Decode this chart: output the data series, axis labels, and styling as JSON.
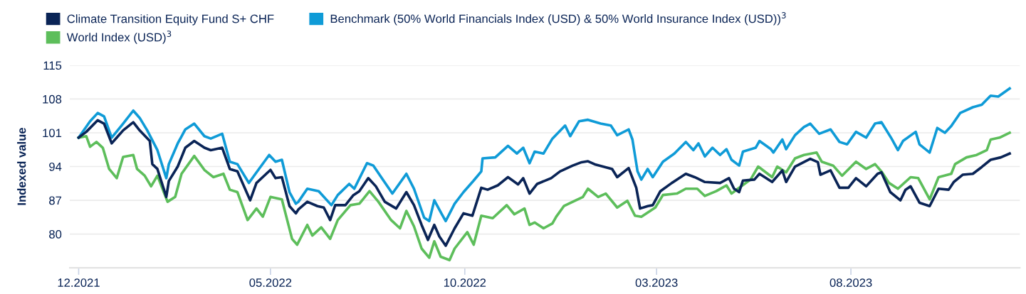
{
  "chart_data": {
    "type": "line",
    "ylabel": "Indexed value",
    "legend": "top left",
    "grid": "y",
    "marker": "none",
    "line_style": "solid",
    "xlim": [
      "2021-11-24",
      "2023-12-12"
    ],
    "xticks": [
      {
        "value": "2021-12-01",
        "label": "12.2021"
      },
      {
        "value": "2022-05-01",
        "label": "05.2022"
      },
      {
        "value": "2022-10-01",
        "label": "10.2022"
      },
      {
        "value": "2023-03-01",
        "label": "03.2023"
      },
      {
        "value": "2023-08-01",
        "label": "08.2023"
      }
    ],
    "ylim": [
      73,
      115
    ],
    "yticks": [
      80,
      87,
      94,
      101,
      108,
      115
    ],
    "series": [
      {
        "name": "Climate Transition Equity Fund S+ CHF",
        "color": "#0a2456",
        "x": [
          "2021-12-01",
          "2021-12-07",
          "2021-12-16",
          "2021-12-21",
          "2021-12-27",
          "2021-12-31",
          "2022-01-05",
          "2022-01-13",
          "2022-01-18",
          "2022-01-26",
          "2022-01-28",
          "2022-02-01",
          "2022-02-08",
          "2022-02-10",
          "2022-02-17",
          "2022-02-23",
          "2022-03-02",
          "2022-03-10",
          "2022-03-15",
          "2022-03-24",
          "2022-03-30",
          "2022-04-05",
          "2022-04-15",
          "2022-04-20",
          "2022-05-01",
          "2022-05-05",
          "2022-05-10",
          "2022-05-16",
          "2022-05-21",
          "2022-05-23",
          "2022-05-30",
          "2022-06-07",
          "2022-06-12",
          "2022-06-17",
          "2022-06-21",
          "2022-06-29",
          "2022-07-05",
          "2022-07-10",
          "2022-07-17",
          "2022-07-23",
          "2022-07-30",
          "2022-08-08",
          "2022-08-16",
          "2022-08-22",
          "2022-08-28",
          "2022-09-02",
          "2022-09-07",
          "2022-09-11",
          "2022-09-16",
          "2022-09-23",
          "2022-09-30",
          "2022-10-07",
          "2022-10-14",
          "2022-10-19",
          "2022-10-27",
          "2022-11-04",
          "2022-11-12",
          "2022-11-16",
          "2022-11-21",
          "2022-11-27",
          "2022-12-08",
          "2022-12-15",
          "2022-12-25",
          "2023-01-01",
          "2023-01-06",
          "2023-01-12",
          "2023-01-25",
          "2023-01-29",
          "2023-02-07",
          "2023-02-13",
          "2023-02-16",
          "2023-02-22",
          "2023-02-26",
          "2023-03-04",
          "2023-03-13",
          "2023-03-24",
          "2023-03-31",
          "2023-04-08",
          "2023-04-20",
          "2023-04-27",
          "2023-05-01",
          "2023-05-05",
          "2023-05-08",
          "2023-05-17",
          "2023-05-21",
          "2023-05-31",
          "2023-06-08",
          "2023-06-11",
          "2023-06-18",
          "2023-06-30",
          "2023-07-06",
          "2023-07-08",
          "2023-07-16",
          "2023-07-23",
          "2023-07-30",
          "2023-08-05",
          "2023-08-13",
          "2023-08-22",
          "2023-08-25",
          "2023-09-01",
          "2023-09-09",
          "2023-09-13",
          "2023-09-17",
          "2023-09-24",
          "2023-10-02",
          "2023-10-09",
          "2023-10-17",
          "2023-10-21",
          "2023-10-28",
          "2023-11-05",
          "2023-11-12",
          "2023-11-19",
          "2023-11-27",
          "2023-12-04"
        ],
        "values": [
          100,
          101.2,
          103.6,
          102.9,
          98.8,
          100,
          101.5,
          103.2,
          101.5,
          99.3,
          94.5,
          93.5,
          87.7,
          91,
          94,
          97.9,
          99.3,
          97.9,
          97.4,
          97.9,
          93.5,
          93,
          87,
          90.6,
          93.3,
          91.6,
          91.8,
          85.8,
          84.3,
          85.1,
          86.7,
          85.8,
          85.5,
          82.9,
          86,
          86,
          88,
          88.9,
          91.6,
          89.9,
          86.7,
          85.3,
          88.7,
          86,
          81.9,
          78.8,
          81.9,
          79.5,
          77.6,
          81.2,
          84.3,
          83.8,
          89.6,
          89.2,
          90.1,
          91.8,
          90.3,
          91.6,
          88.4,
          90.4,
          91.6,
          93,
          94.2,
          94.9,
          95.1,
          94.4,
          93.5,
          91.8,
          93.7,
          89.6,
          85.3,
          85.8,
          86,
          88.9,
          90.6,
          92.5,
          91.8,
          90.8,
          90.6,
          91.6,
          89.4,
          88.7,
          91.1,
          91.3,
          92.5,
          90.8,
          93.2,
          90.8,
          94,
          95.6,
          94.9,
          92.3,
          93.2,
          89.6,
          89.6,
          91.6,
          89.9,
          92.5,
          92.8,
          88.7,
          87,
          89.2,
          89.9,
          86.5,
          85.8,
          89.4,
          89.2,
          90.8,
          92.3,
          92.5,
          93.9,
          95.4,
          95.9,
          96.7
        ]
      },
      {
        "name": "Benchmark (50% World Financials Index (USD) & 50% World Insurance Index (USD))$^{3}$",
        "color": "#0f9bd7",
        "x": [
          "2021-12-01",
          "2021-12-10",
          "2021-12-16",
          "2021-12-21",
          "2021-12-27",
          "2022-01-05",
          "2022-01-13",
          "2022-01-18",
          "2022-01-24",
          "2022-02-01",
          "2022-02-08",
          "2022-02-10",
          "2022-02-17",
          "2022-02-23",
          "2022-03-02",
          "2022-03-10",
          "2022-03-15",
          "2022-03-24",
          "2022-03-30",
          "2022-04-05",
          "2022-04-14",
          "2022-04-20",
          "2022-04-30",
          "2022-05-05",
          "2022-05-10",
          "2022-05-16",
          "2022-05-21",
          "2022-05-23",
          "2022-05-30",
          "2022-06-08",
          "2022-06-18",
          "2022-06-23",
          "2022-07-02",
          "2022-07-06",
          "2022-07-16",
          "2022-07-21",
          "2022-07-29",
          "2022-08-05",
          "2022-08-16",
          "2022-08-22",
          "2022-08-30",
          "2022-09-03",
          "2022-09-07",
          "2022-09-13",
          "2022-09-16",
          "2022-09-23",
          "2022-09-30",
          "2022-10-08",
          "2022-10-14",
          "2022-10-15",
          "2022-10-25",
          "2022-11-04",
          "2022-11-11",
          "2022-11-16",
          "2022-11-21",
          "2022-11-25",
          "2022-12-02",
          "2022-12-09",
          "2022-12-19",
          "2022-12-23",
          "2022-12-30",
          "2023-01-06",
          "2023-01-16",
          "2023-01-24",
          "2023-01-29",
          "2023-02-07",
          "2023-02-10",
          "2023-02-14",
          "2023-02-17",
          "2023-02-22",
          "2023-02-26",
          "2023-03-06",
          "2023-03-15",
          "2023-03-24",
          "2023-03-30",
          "2023-04-03",
          "2023-04-08",
          "2023-04-14",
          "2023-04-20",
          "2023-04-25",
          "2023-04-29",
          "2023-05-05",
          "2023-05-08",
          "2023-05-18",
          "2023-05-21",
          "2023-05-30",
          "2023-06-01",
          "2023-06-08",
          "2023-06-11",
          "2023-06-18",
          "2023-06-25",
          "2023-06-30",
          "2023-07-07",
          "2023-07-16",
          "2023-07-23",
          "2023-07-29",
          "2023-08-05",
          "2023-08-13",
          "2023-08-20",
          "2023-08-25",
          "2023-09-02",
          "2023-09-07",
          "2023-09-11",
          "2023-09-21",
          "2023-09-24",
          "2023-10-02",
          "2023-10-08",
          "2023-10-14",
          "2023-10-19",
          "2023-10-26",
          "2023-11-05",
          "2023-11-12",
          "2023-11-19",
          "2023-11-25",
          "2023-12-04"
        ],
        "values": [
          100,
          103.4,
          105.1,
          104.4,
          100,
          102.9,
          105.6,
          104.1,
          101.5,
          97.4,
          91.6,
          94.5,
          98.8,
          101.7,
          102.9,
          100.3,
          99.8,
          100.8,
          95,
          94.5,
          90.6,
          92.8,
          96.4,
          95,
          95.4,
          88.7,
          86.3,
          86.7,
          89.4,
          88.9,
          86,
          88.1,
          90.4,
          89.4,
          94.7,
          94.2,
          91.1,
          88.4,
          92.5,
          89.4,
          83.4,
          82.7,
          87,
          84.1,
          82.7,
          86.3,
          88.7,
          91.1,
          93,
          95.7,
          95.9,
          98.3,
          96.7,
          97.9,
          94.7,
          97.1,
          96.7,
          99.8,
          102.5,
          100.3,
          103.4,
          103.7,
          102.9,
          102.5,
          100.5,
          101.7,
          99.6,
          93,
          91.3,
          93.5,
          91.8,
          95,
          96.7,
          99.1,
          97.4,
          98.8,
          96.1,
          97.9,
          96.4,
          97.6,
          95.4,
          94.2,
          97.1,
          97.9,
          99.3,
          97.6,
          96.9,
          99.6,
          97.6,
          100.5,
          102.2,
          102.9,
          100.8,
          101.7,
          99.1,
          98.6,
          101.2,
          100,
          102.9,
          103.2,
          99.8,
          97.4,
          99.3,
          101.2,
          98.6,
          96.9,
          102,
          101,
          102.4,
          105.1,
          106.3,
          106.8,
          108.7,
          108.5,
          110.2
        ]
      },
      {
        "name": "World Index (USD)$^{3}$",
        "color": "#5dbe5b",
        "x": [
          "2021-12-01",
          "2021-12-07",
          "2021-12-10",
          "2021-12-15",
          "2021-12-20",
          "2021-12-25",
          "2021-12-31",
          "2022-01-05",
          "2022-01-13",
          "2022-01-16",
          "2022-01-22",
          "2022-01-27",
          "2022-02-01",
          "2022-02-09",
          "2022-02-15",
          "2022-02-20",
          "2022-03-02",
          "2022-03-10",
          "2022-03-17",
          "2022-03-25",
          "2022-03-30",
          "2022-04-05",
          "2022-04-13",
          "2022-04-20",
          "2022-04-25",
          "2022-05-01",
          "2022-05-10",
          "2022-05-18",
          "2022-05-22",
          "2022-05-30",
          "2022-06-03",
          "2022-06-10",
          "2022-06-17",
          "2022-06-23",
          "2022-07-03",
          "2022-07-10",
          "2022-07-18",
          "2022-07-25",
          "2022-08-04",
          "2022-08-11",
          "2022-08-16",
          "2022-08-22",
          "2022-08-28",
          "2022-09-03",
          "2022-09-07",
          "2022-09-12",
          "2022-09-19",
          "2022-09-23",
          "2022-10-03",
          "2022-10-08",
          "2022-10-14",
          "2022-10-23",
          "2022-11-03",
          "2022-11-09",
          "2022-11-17",
          "2022-11-21",
          "2022-11-25",
          "2022-12-02",
          "2022-12-09",
          "2022-12-12",
          "2022-12-18",
          "2022-12-25",
          "2023-01-02",
          "2023-01-06",
          "2023-01-14",
          "2023-01-20",
          "2023-01-29",
          "2023-02-06",
          "2023-02-12",
          "2023-02-17",
          "2023-02-28",
          "2023-03-06",
          "2023-03-17",
          "2023-03-24",
          "2023-04-02",
          "2023-04-08",
          "2023-04-17",
          "2023-04-25",
          "2023-04-29",
          "2023-05-04",
          "2023-05-14",
          "2023-05-20",
          "2023-05-31",
          "2023-06-04",
          "2023-06-11",
          "2023-06-18",
          "2023-06-25",
          "2023-07-05",
          "2023-07-09",
          "2023-07-18",
          "2023-07-25",
          "2023-08-05",
          "2023-08-13",
          "2023-08-20",
          "2023-08-25",
          "2023-08-31",
          "2023-09-07",
          "2023-09-17",
          "2023-09-23",
          "2023-10-02",
          "2023-10-09",
          "2023-10-19",
          "2023-10-22",
          "2023-10-31",
          "2023-11-08",
          "2023-11-16",
          "2023-11-19",
          "2023-11-26",
          "2023-12-04"
        ],
        "values": [
          100,
          100.3,
          98.1,
          99.1,
          97.9,
          93.5,
          91.6,
          96,
          96.4,
          93.5,
          92.1,
          89.9,
          92.1,
          86.7,
          87.7,
          92.5,
          96.2,
          93.3,
          91.8,
          92.5,
          89.2,
          88.7,
          82.9,
          85.3,
          83.6,
          87.7,
          87.2,
          79,
          77.8,
          81.9,
          79.7,
          81.4,
          79,
          82.9,
          86,
          86.3,
          88.9,
          86.7,
          82.9,
          81.2,
          84.8,
          81.6,
          77,
          75.1,
          78.5,
          75.3,
          74.6,
          77,
          80.4,
          77.8,
          83.8,
          83.3,
          86,
          84.1,
          85.3,
          81.9,
          82.4,
          81.2,
          82.2,
          83.6,
          85.8,
          86.7,
          87.7,
          89.4,
          87.7,
          88.4,
          85.5,
          86.9,
          83.8,
          83.6,
          85.5,
          88.1,
          88.4,
          89.4,
          89.4,
          87.9,
          88.9,
          90.1,
          88.4,
          89.4,
          91.3,
          94,
          91.8,
          94,
          92.8,
          95.7,
          96.4,
          96.9,
          95,
          94.2,
          92.1,
          95,
          93.5,
          94.5,
          93,
          90.6,
          89.4,
          91.8,
          91.6,
          87.2,
          91.8,
          92.5,
          94.5,
          95.9,
          96.4,
          97.4,
          99.6,
          100,
          101
        ]
      }
    ]
  }
}
